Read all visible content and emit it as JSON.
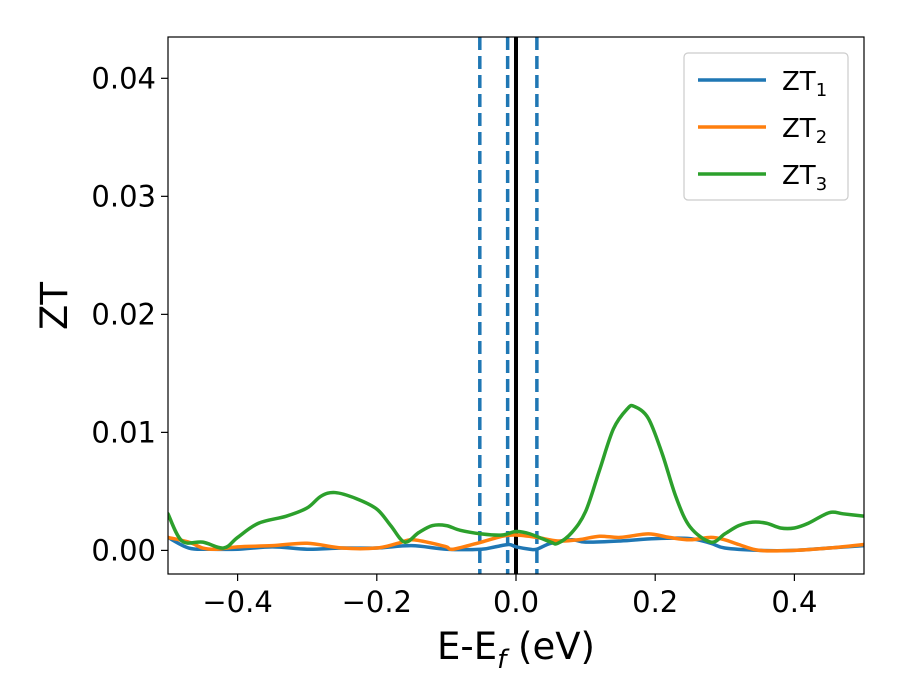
{
  "chart_data": {
    "type": "line",
    "xlabel": {
      "base": "E-E",
      "sub": "f",
      "suffix": " (eV)"
    },
    "ylabel": "ZT",
    "xlim": [
      -0.5,
      0.5
    ],
    "ylim": [
      -0.002,
      0.0435
    ],
    "xticks": [
      -0.4,
      -0.2,
      0.0,
      0.2,
      0.4
    ],
    "xtick_labels": [
      "−0.4",
      "−0.2",
      "0.0",
      "0.2",
      "0.4"
    ],
    "yticks": [
      0.0,
      0.01,
      0.02,
      0.03,
      0.04
    ],
    "ytick_labels": [
      "0.00",
      "0.01",
      "0.02",
      "0.03",
      "0.04"
    ],
    "legend_position": "top-right",
    "grid": false,
    "vlines": [
      {
        "x": -0.052,
        "style": "dashed",
        "color": "#1f77b4"
      },
      {
        "x": -0.012,
        "style": "dashed",
        "color": "#1f77b4"
      },
      {
        "x": 0.03,
        "style": "dashed",
        "color": "#1f77b4"
      },
      {
        "x": 0.0,
        "style": "solid",
        "color": "#000000"
      }
    ],
    "series": [
      {
        "name": "ZT",
        "sub": "1",
        "color": "#1f77b4",
        "x": [
          -0.5,
          -0.47,
          -0.44,
          -0.4,
          -0.35,
          -0.3,
          -0.25,
          -0.2,
          -0.15,
          -0.1,
          -0.05,
          -0.03,
          -0.01,
          0.0,
          0.02,
          0.03,
          0.05,
          0.08,
          0.1,
          0.15,
          0.2,
          0.25,
          0.28,
          0.3,
          0.35,
          0.4,
          0.45,
          0.5
        ],
        "y": [
          0.0011,
          0.0002,
          0.0001,
          0.0001,
          0.0003,
          0.0001,
          0.0002,
          0.0002,
          0.0004,
          0.0001,
          0.0001,
          0.0003,
          0.0005,
          0.0003,
          0.0001,
          0.0001,
          0.0006,
          0.0009,
          0.0007,
          0.0008,
          0.001,
          0.001,
          0.0006,
          0.0002,
          0.0,
          0.0,
          0.0002,
          0.0004
        ]
      },
      {
        "name": "ZT",
        "sub": "2",
        "color": "#ff7f0e",
        "x": [
          -0.5,
          -0.47,
          -0.45,
          -0.43,
          -0.4,
          -0.35,
          -0.3,
          -0.25,
          -0.2,
          -0.17,
          -0.15,
          -0.12,
          -0.1,
          -0.09,
          -0.05,
          -0.02,
          0.0,
          0.03,
          0.06,
          0.09,
          0.12,
          0.15,
          0.19,
          0.22,
          0.25,
          0.28,
          0.3,
          0.32,
          0.35,
          0.4,
          0.45,
          0.5
        ],
        "y": [
          0.0011,
          0.0007,
          0.0002,
          0.0001,
          0.0003,
          0.0004,
          0.0006,
          0.0002,
          0.0002,
          0.0006,
          0.0009,
          0.0006,
          0.0003,
          0.0001,
          0.0007,
          0.0012,
          0.0013,
          0.0011,
          0.0008,
          0.0009,
          0.0012,
          0.0011,
          0.0014,
          0.0011,
          0.0009,
          0.0011,
          0.0009,
          0.0005,
          0.0,
          0.0,
          0.0002,
          0.0005
        ]
      },
      {
        "name": "ZT",
        "sub": "3",
        "color": "#2ca02c",
        "x": [
          -0.5,
          -0.48,
          -0.45,
          -0.42,
          -0.4,
          -0.37,
          -0.33,
          -0.3,
          -0.28,
          -0.26,
          -0.23,
          -0.2,
          -0.18,
          -0.16,
          -0.14,
          -0.12,
          -0.1,
          -0.08,
          -0.05,
          -0.02,
          0.0,
          0.02,
          0.05,
          0.06,
          0.08,
          0.1,
          0.12,
          0.14,
          0.16,
          0.17,
          0.19,
          0.21,
          0.23,
          0.25,
          0.28,
          0.3,
          0.32,
          0.34,
          0.36,
          0.38,
          0.4,
          0.42,
          0.45,
          0.47,
          0.5
        ],
        "y": [
          0.0031,
          0.0008,
          0.0007,
          0.0002,
          0.0011,
          0.0023,
          0.0029,
          0.0036,
          0.0046,
          0.0049,
          0.0044,
          0.0035,
          0.0021,
          0.0007,
          0.0015,
          0.0021,
          0.0021,
          0.0017,
          0.0014,
          0.0013,
          0.0016,
          0.0014,
          0.0007,
          0.0006,
          0.0015,
          0.0033,
          0.0068,
          0.0103,
          0.012,
          0.0122,
          0.0112,
          0.0082,
          0.0045,
          0.002,
          0.0007,
          0.0014,
          0.0021,
          0.0024,
          0.0023,
          0.0019,
          0.0019,
          0.0023,
          0.0032,
          0.0031,
          0.0029
        ]
      }
    ]
  }
}
